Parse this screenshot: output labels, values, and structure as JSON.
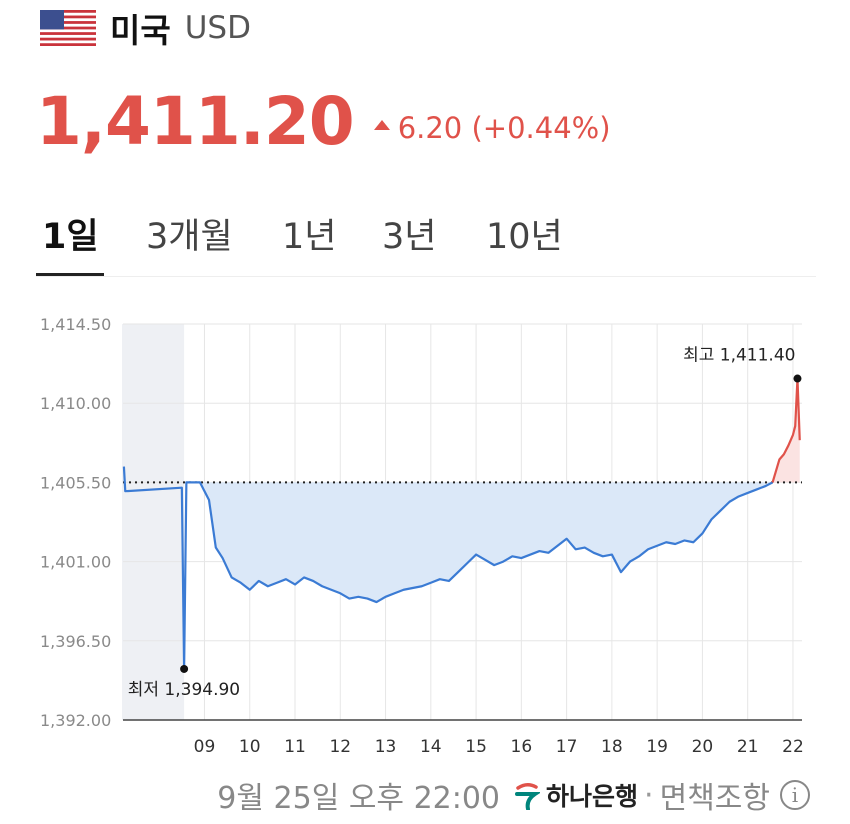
{
  "header": {
    "flag_icon": "us-flag-icon",
    "country": "미국",
    "currency": "USD"
  },
  "quote": {
    "price": "1,411.20",
    "change_direction": "up",
    "change": "6.20 (+0.44%)",
    "color_up": "#e0524a",
    "color_down": "#3b7bd4"
  },
  "tabs": [
    {
      "label": "1일",
      "active": true
    },
    {
      "label": "3개월",
      "active": false
    },
    {
      "label": "1년",
      "active": false
    },
    {
      "label": "3년",
      "active": false
    },
    {
      "label": "10년",
      "active": false
    }
  ],
  "chart_data": {
    "type": "area",
    "y_ticks": [
      "1,414.50",
      "1,410.00",
      "1,405.50",
      "1,401.00",
      "1,396.50",
      "1,392.00"
    ],
    "ylim": [
      1392.0,
      1414.5
    ],
    "x_ticks": [
      "09",
      "10",
      "11",
      "12",
      "13",
      "14",
      "15",
      "16",
      "17",
      "18",
      "19",
      "20",
      "21",
      "22"
    ],
    "xlim": [
      7.2,
      22.2
    ],
    "baseline": 1405.5,
    "night_session": [
      7.2,
      8.55
    ],
    "night_icon": "moon-icon",
    "grid": true,
    "series": [
      {
        "x": [
          7.22,
          7.25,
          8.5,
          8.55,
          8.6,
          8.9,
          9.1,
          9.25,
          9.4,
          9.6,
          9.8,
          10.0,
          10.2,
          10.4,
          10.6,
          10.8,
          11.0,
          11.2,
          11.4,
          11.6,
          11.8,
          12.0,
          12.2,
          12.4,
          12.6,
          12.8,
          13.0,
          13.2,
          13.4,
          13.6,
          13.8,
          14.0,
          14.2,
          14.4,
          14.6,
          14.8,
          15.0,
          15.2,
          15.4,
          15.6,
          15.8,
          16.0,
          16.2,
          16.4,
          16.6,
          16.8,
          17.0,
          17.2,
          17.4,
          17.6,
          17.8,
          18.0,
          18.2,
          18.4,
          18.6,
          18.8,
          19.0,
          19.2,
          19.4,
          19.6,
          19.8,
          20.0,
          20.2,
          20.4,
          20.6,
          20.8,
          21.0,
          21.2,
          21.4,
          21.55
        ],
        "y": [
          1406.4,
          1405.0,
          1405.2,
          1394.9,
          1405.5,
          1405.5,
          1404.5,
          1401.8,
          1401.2,
          1400.1,
          1399.8,
          1399.4,
          1399.9,
          1399.6,
          1399.8,
          1400.0,
          1399.7,
          1400.1,
          1399.9,
          1399.6,
          1399.4,
          1399.2,
          1398.9,
          1399.0,
          1398.9,
          1398.7,
          1399.0,
          1399.2,
          1399.4,
          1399.5,
          1399.6,
          1399.8,
          1400.0,
          1399.9,
          1400.4,
          1400.9,
          1401.4,
          1401.1,
          1400.8,
          1401.0,
          1401.3,
          1401.2,
          1401.4,
          1401.6,
          1401.5,
          1401.9,
          1402.3,
          1401.7,
          1401.8,
          1401.5,
          1401.3,
          1401.4,
          1400.4,
          1401.0,
          1401.3,
          1401.7,
          1401.9,
          1402.1,
          1402.0,
          1402.2,
          1402.1,
          1402.6,
          1403.4,
          1403.9,
          1404.4,
          1404.7,
          1404.9,
          1405.1,
          1405.3,
          1405.5
        ]
      },
      {
        "x": [
          21.55,
          21.7,
          21.8,
          21.9,
          22.0,
          22.05,
          22.1,
          22.15
        ],
        "y": [
          1405.5,
          1406.8,
          1407.1,
          1407.6,
          1408.2,
          1408.7,
          1411.4,
          1407.9
        ]
      }
    ],
    "annotations": [
      {
        "label": "최고 1,411.40",
        "x": 22.1,
        "y": 1411.4
      },
      {
        "label": "최저 1,394.90",
        "x": 8.55,
        "y": 1394.9
      }
    ]
  },
  "footer": {
    "datetime": "9월 25일 오후 22:00",
    "bank": "하나은행",
    "separator": "·",
    "disclaimer": "면책조항",
    "info_icon": "info-icon",
    "info_glyph": "i"
  }
}
